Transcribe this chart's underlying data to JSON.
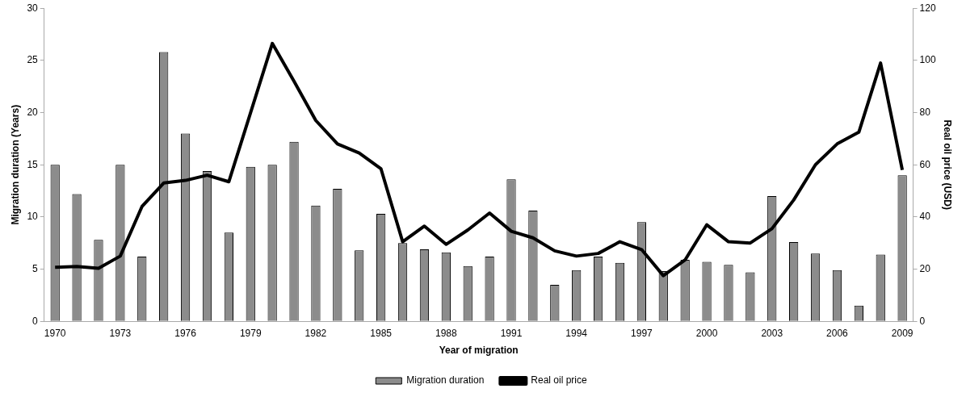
{
  "chart_data": {
    "type": "bar",
    "xlabel": "Year of migration",
    "ylabel": "Migration duration (Years)",
    "y2label": "Real oil price (USD)",
    "categories": [
      "1970",
      null,
      null,
      "1973",
      null,
      null,
      "1976",
      null,
      null,
      "1979",
      null,
      null,
      "1982",
      null,
      null,
      "1985",
      null,
      null,
      "1988",
      null,
      null,
      "1991",
      null,
      null,
      "1994",
      null,
      null,
      "1997",
      null,
      null,
      "2000",
      null,
      null,
      "2003",
      null,
      null,
      "2006",
      null,
      null,
      "2009"
    ],
    "series": [
      {
        "name": "Migration duration",
        "color": "#8c8c8c",
        "values": [
          15,
          12.2,
          7.8,
          15,
          6.2,
          25.8,
          18,
          14.4,
          8.5,
          14.8,
          15,
          17.2,
          11.1,
          12.7,
          6.8,
          10.3,
          7.5,
          6.9,
          6.6,
          5.3,
          6.2,
          13.6,
          10.6,
          3.5,
          4.9,
          6.2,
          5.6,
          9.5,
          4.8,
          5.9,
          5.7,
          5.4,
          4.7,
          12,
          7.6,
          6.5,
          4.9,
          1.5,
          6.4,
          14
        ]
      },
      {
        "name": "Real oil price",
        "type": "line",
        "axis": "y2",
        "color": "#000000",
        "values": [
          20.7,
          21,
          20.3,
          25,
          44,
          53,
          54,
          56,
          53.5,
          80,
          106.5,
          92,
          77,
          68,
          64.5,
          58.5,
          30.5,
          36.5,
          29.5,
          35,
          41.5,
          34.5,
          32,
          27,
          25,
          26,
          30.5,
          27.5,
          17.5,
          23.5,
          37,
          30.5,
          30,
          35.5,
          46.5,
          60,
          68,
          72.5,
          99,
          58
        ]
      }
    ],
    "ylim": [
      0,
      30
    ],
    "yticks": [
      0,
      5,
      10,
      15,
      20,
      25,
      30
    ],
    "y2lim": [
      0,
      120
    ],
    "y2ticks": [
      0,
      20,
      40,
      60,
      80,
      100,
      120
    ],
    "grid": false,
    "legend": "bottom",
    "marker": "none",
    "line_style": "solid"
  }
}
